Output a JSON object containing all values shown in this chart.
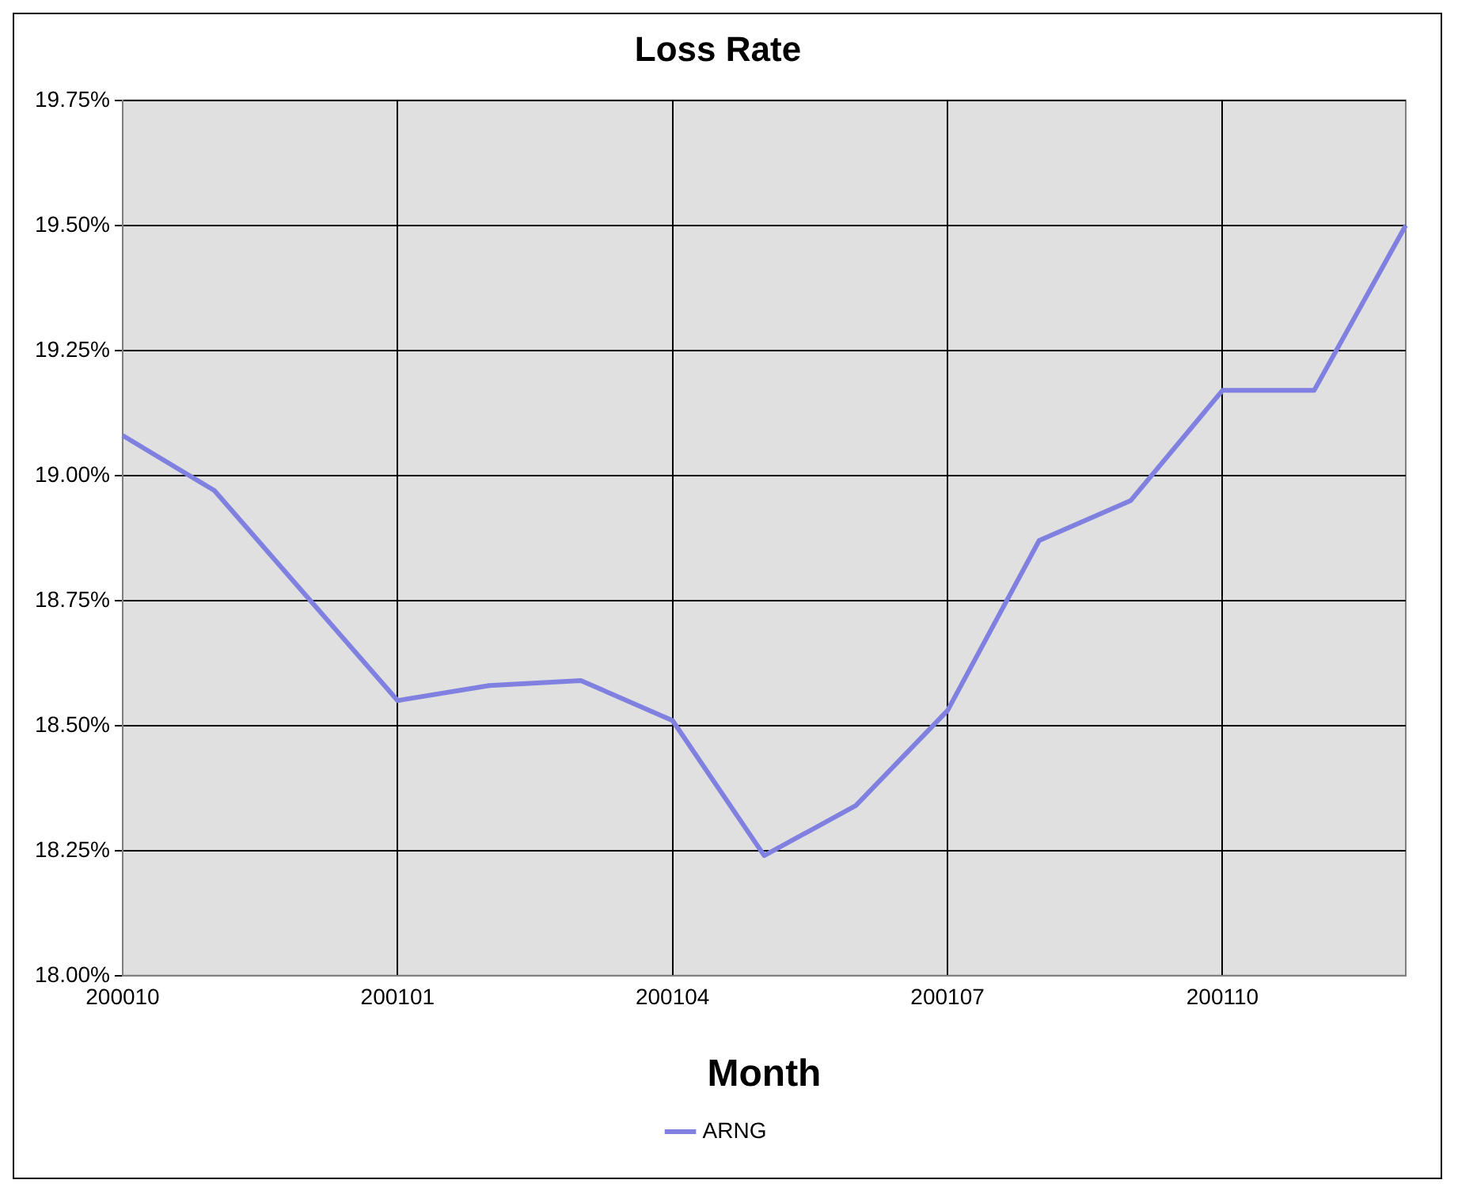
{
  "chart_data": {
    "type": "line",
    "title": "Loss Rate",
    "xlabel": "Month",
    "categories": [
      "200010",
      null,
      null,
      "200101",
      null,
      null,
      "200104",
      null,
      null,
      "200107",
      null,
      null,
      "200110",
      null,
      null
    ],
    "series": [
      {
        "name": "ARNG",
        "color": "#8080e0",
        "values": [
          19.08,
          18.97,
          18.76,
          18.55,
          18.58,
          18.59,
          18.51,
          18.24,
          18.34,
          18.53,
          18.87,
          18.95,
          19.17,
          19.17,
          19.5
        ]
      }
    ],
    "ylim": [
      18.0,
      19.75
    ],
    "yticks": [
      {
        "value": 18.0,
        "label": "18.00%"
      },
      {
        "value": 18.25,
        "label": "18.25%"
      },
      {
        "value": 18.5,
        "label": "18.50%"
      },
      {
        "value": 18.75,
        "label": "18.75%"
      },
      {
        "value": 19.0,
        "label": "19.00%"
      },
      {
        "value": 19.25,
        "label": "19.25%"
      },
      {
        "value": 19.5,
        "label": "19.50%"
      },
      {
        "value": 19.75,
        "label": "19.75%"
      }
    ],
    "grid": true,
    "legend": "bottom",
    "marker": "none",
    "line_style": "solid"
  }
}
